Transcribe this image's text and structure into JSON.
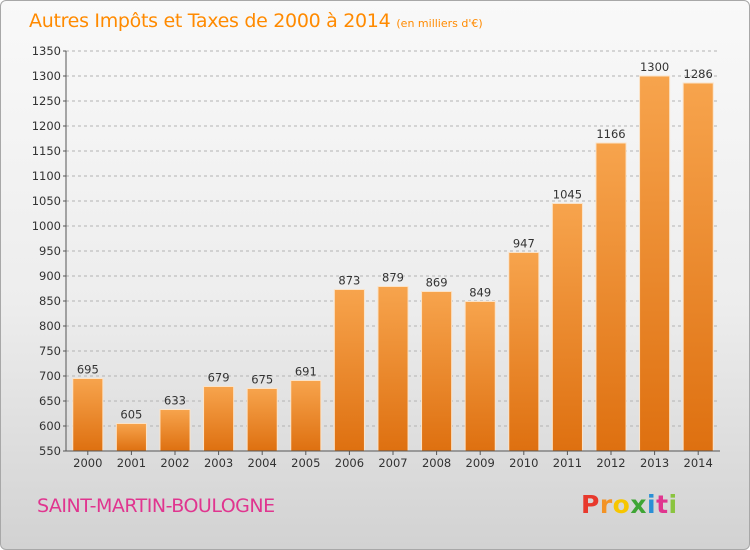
{
  "chart_data": {
    "type": "bar",
    "title": "Autres Impôts et Taxes de 2000 à 2014",
    "subtitle": "(en milliers d'€)",
    "categories": [
      "2000",
      "2001",
      "2002",
      "2003",
      "2004",
      "2005",
      "2006",
      "2007",
      "2008",
      "2009",
      "2010",
      "2011",
      "2012",
      "2013",
      "2014"
    ],
    "values": [
      695,
      605,
      633,
      679,
      675,
      691,
      873,
      879,
      869,
      849,
      947,
      1045,
      1166,
      1300,
      1286
    ],
    "ylim": [
      550,
      1350
    ],
    "yticks": [
      550,
      600,
      650,
      700,
      750,
      800,
      850,
      900,
      950,
      1000,
      1050,
      1100,
      1150,
      1200,
      1250,
      1300,
      1350
    ],
    "xlabel": "",
    "ylabel": "",
    "grid": true,
    "bar_color": "#f39325"
  },
  "footer": {
    "place": "SAINT-MARTIN-BOULOGNE",
    "logo": "Proxiti",
    "logo_colors": [
      "#e8392d",
      "#f39325",
      "#f7c600",
      "#3fa535",
      "#2a8fd6",
      "#e0358f",
      "#8ac43f"
    ]
  }
}
